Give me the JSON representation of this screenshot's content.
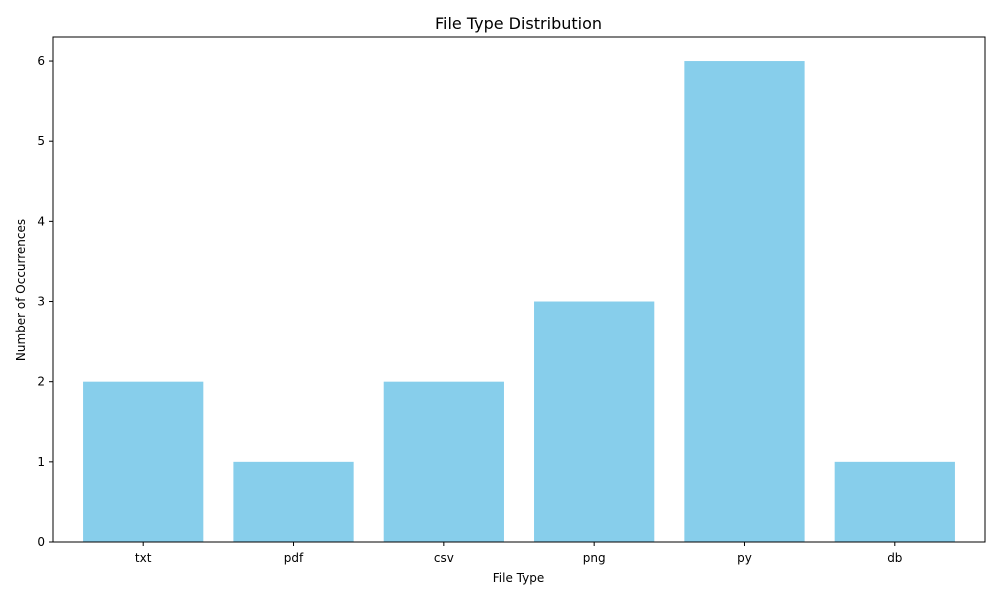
{
  "chart_data": {
    "type": "bar",
    "title": "File Type Distribution",
    "xlabel": "File Type",
    "ylabel": "Number of Occurrences",
    "categories": [
      "txt",
      "pdf",
      "csv",
      "png",
      "py",
      "db"
    ],
    "values": [
      2,
      1,
      2,
      3,
      6,
      1
    ],
    "ylim": [
      0,
      6.3
    ],
    "yticks": [
      0,
      1,
      2,
      3,
      4,
      5,
      6
    ],
    "bar_color": "#87CEEB",
    "grid": false,
    "legend": "none"
  }
}
